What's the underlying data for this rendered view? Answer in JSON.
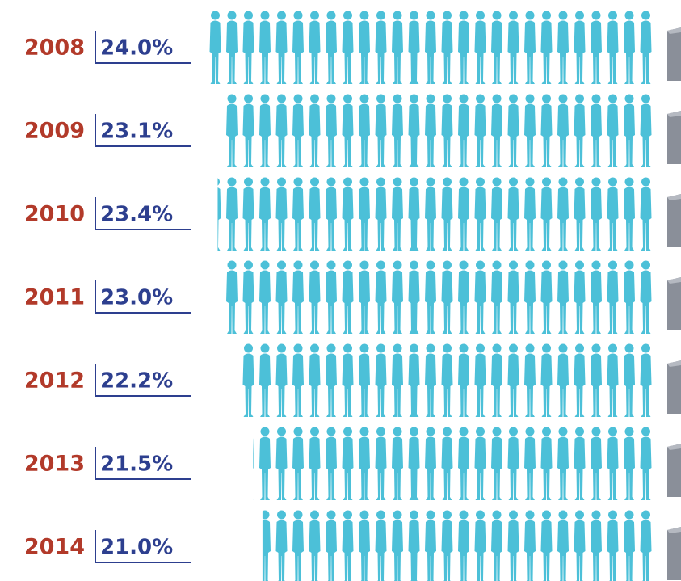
{
  "chart_data": {
    "type": "pictogram",
    "categories": [
      "2008",
      "2009",
      "2010",
      "2011",
      "2012",
      "2013",
      "2014"
    ],
    "values": [
      24.0,
      23.1,
      23.4,
      23.0,
      22.2,
      21.5,
      21.0
    ],
    "value_labels": [
      "24.0%",
      "23.1%",
      "23.4%",
      "23.0%",
      "22.2%",
      "21.5%",
      "21.0%"
    ],
    "color": "#4cc0d8",
    "label_color": "#b23a2a",
    "value_color": "#2d3f8f"
  }
}
